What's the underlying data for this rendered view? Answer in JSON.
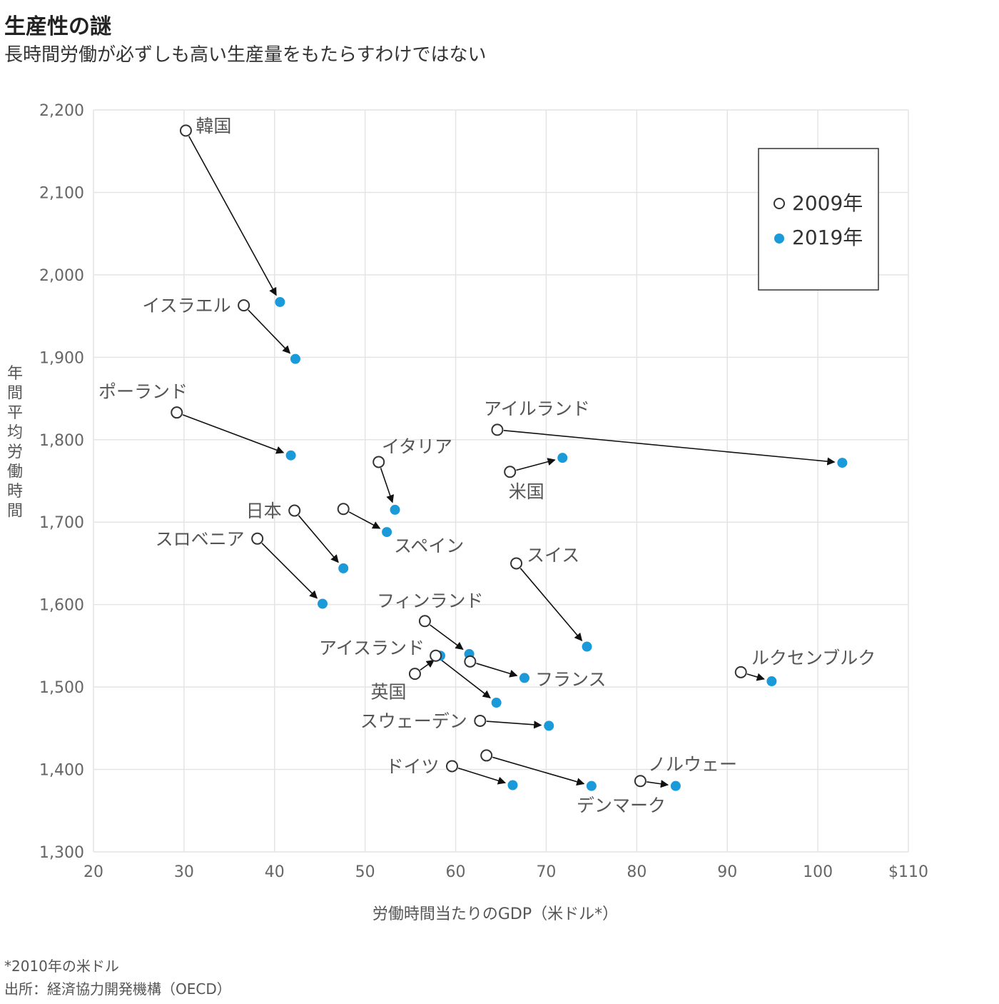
{
  "header": {
    "title": "生産性の謎",
    "subtitle": "長時間労働が必ずしも高い生産量をもたらすわけではない"
  },
  "footer": {
    "note": "*2010年の米ドル",
    "source": "出所：経済協力開発機構（OECD）"
  },
  "colors": {
    "series_2019": "#1a9ad9",
    "series_2009": "#ffffff",
    "grid": "#e4e4e4",
    "arrow": "#111111"
  },
  "chart_data": {
    "type": "scatter",
    "xlabel": "労働時間当たりのGDP（米ドル*）",
    "ylabel": "年間平均労働時間",
    "xlim": [
      20,
      110
    ],
    "ylim": [
      1300,
      2200
    ],
    "x_ticks": [
      {
        "value": 20,
        "label": "20"
      },
      {
        "value": 30,
        "label": "30"
      },
      {
        "value": 40,
        "label": "40"
      },
      {
        "value": 50,
        "label": "50"
      },
      {
        "value": 60,
        "label": "60"
      },
      {
        "value": 70,
        "label": "70"
      },
      {
        "value": 80,
        "label": "80"
      },
      {
        "value": 90,
        "label": "90"
      },
      {
        "value": 100,
        "label": "100"
      },
      {
        "value": 110,
        "label": "$110"
      }
    ],
    "y_ticks": [
      {
        "value": 1300,
        "label": "1,300"
      },
      {
        "value": 1400,
        "label": "1,400"
      },
      {
        "value": 1500,
        "label": "1,500"
      },
      {
        "value": 1600,
        "label": "1,600"
      },
      {
        "value": 1700,
        "label": "1,700"
      },
      {
        "value": 1800,
        "label": "1,800"
      },
      {
        "value": 1900,
        "label": "1,900"
      },
      {
        "value": 2000,
        "label": "2,000"
      },
      {
        "value": 2100,
        "label": "2,100"
      },
      {
        "value": 2200,
        "label": "2,200"
      }
    ],
    "grid": true,
    "legend": {
      "placement": "top-right",
      "entries": [
        {
          "name": "2009年",
          "marker": "hollow"
        },
        {
          "name": "2019年",
          "marker": "filled"
        }
      ]
    },
    "countries": [
      {
        "name": "韓国",
        "x2009": 30.2,
        "y2009": 2175,
        "x2019": 40.6,
        "y2019": 1967,
        "label_pos": "right"
      },
      {
        "name": "イスラエル",
        "x2009": 36.6,
        "y2009": 1963,
        "x2019": 42.3,
        "y2019": 1898,
        "label_pos": "left"
      },
      {
        "name": "ポーランド",
        "x2009": 29.2,
        "y2009": 1833,
        "x2019": 41.8,
        "y2019": 1781,
        "label_pos": "above-left"
      },
      {
        "name": "アイルランド",
        "x2009": 64.6,
        "y2009": 1812,
        "x2019": 102.7,
        "y2019": 1772,
        "label_pos": "above-right"
      },
      {
        "name": "イタリア",
        "x2009": 51.5,
        "y2009": 1773,
        "x2019": 53.3,
        "y2019": 1715,
        "label_pos": "above-right"
      },
      {
        "name": "米国",
        "x2009": 66.0,
        "y2009": 1761,
        "x2019": 71.8,
        "y2019": 1778,
        "label_pos": "below"
      },
      {
        "name": "日本",
        "x2009": 42.2,
        "y2009": 1714,
        "x2019": 47.6,
        "y2019": 1644,
        "label_pos": "left"
      },
      {
        "name": "スペイン",
        "x2009": 47.6,
        "y2009": 1716,
        "x2019": 52.4,
        "y2019": 1688,
        "label_pos": "below-right"
      },
      {
        "name": "スロベニア",
        "x2009": 38.1,
        "y2009": 1680,
        "x2019": 45.3,
        "y2019": 1601,
        "label_pos": "left"
      },
      {
        "name": "スイス",
        "x2009": 66.7,
        "y2009": 1650,
        "x2019": 74.5,
        "y2019": 1549,
        "label_pos": "above-right"
      },
      {
        "name": "フィンランド",
        "x2009": 56.6,
        "y2009": 1580,
        "x2019": 61.5,
        "y2019": 1540,
        "label_pos": "above"
      },
      {
        "name": "アイスランド",
        "x2009": 57.8,
        "y2009": 1538,
        "x2019": 64.5,
        "y2019": 1481,
        "label_pos": "left"
      },
      {
        "name": "英国",
        "x2009": 55.5,
        "y2009": 1516,
        "x2019": 58.3,
        "y2019": 1538,
        "label_pos": "below"
      },
      {
        "name": "フランス",
        "x2009": 61.6,
        "y2009": 1531,
        "x2019": 67.6,
        "y2019": 1511,
        "label_pos": "right"
      },
      {
        "name": "ルクセンブルク",
        "x2009": 91.5,
        "y2009": 1518,
        "x2019": 94.9,
        "y2019": 1507,
        "label_pos": "above-right"
      },
      {
        "name": "スウェーデン",
        "x2009": 62.7,
        "y2009": 1459,
        "x2019": 70.3,
        "y2019": 1453,
        "label_pos": "left"
      },
      {
        "name": "ドイツ",
        "x2009": 59.6,
        "y2009": 1404,
        "x2019": 66.3,
        "y2019": 1381,
        "label_pos": "left"
      },
      {
        "name": "デンマーク",
        "x2009": 63.4,
        "y2009": 1417,
        "x2019": 75.0,
        "y2019": 1380,
        "label_pos": "below"
      },
      {
        "name": "ノルウェー",
        "x2009": 80.4,
        "y2009": 1386,
        "x2019": 84.3,
        "y2019": 1380,
        "label_pos": "above-right"
      }
    ]
  }
}
